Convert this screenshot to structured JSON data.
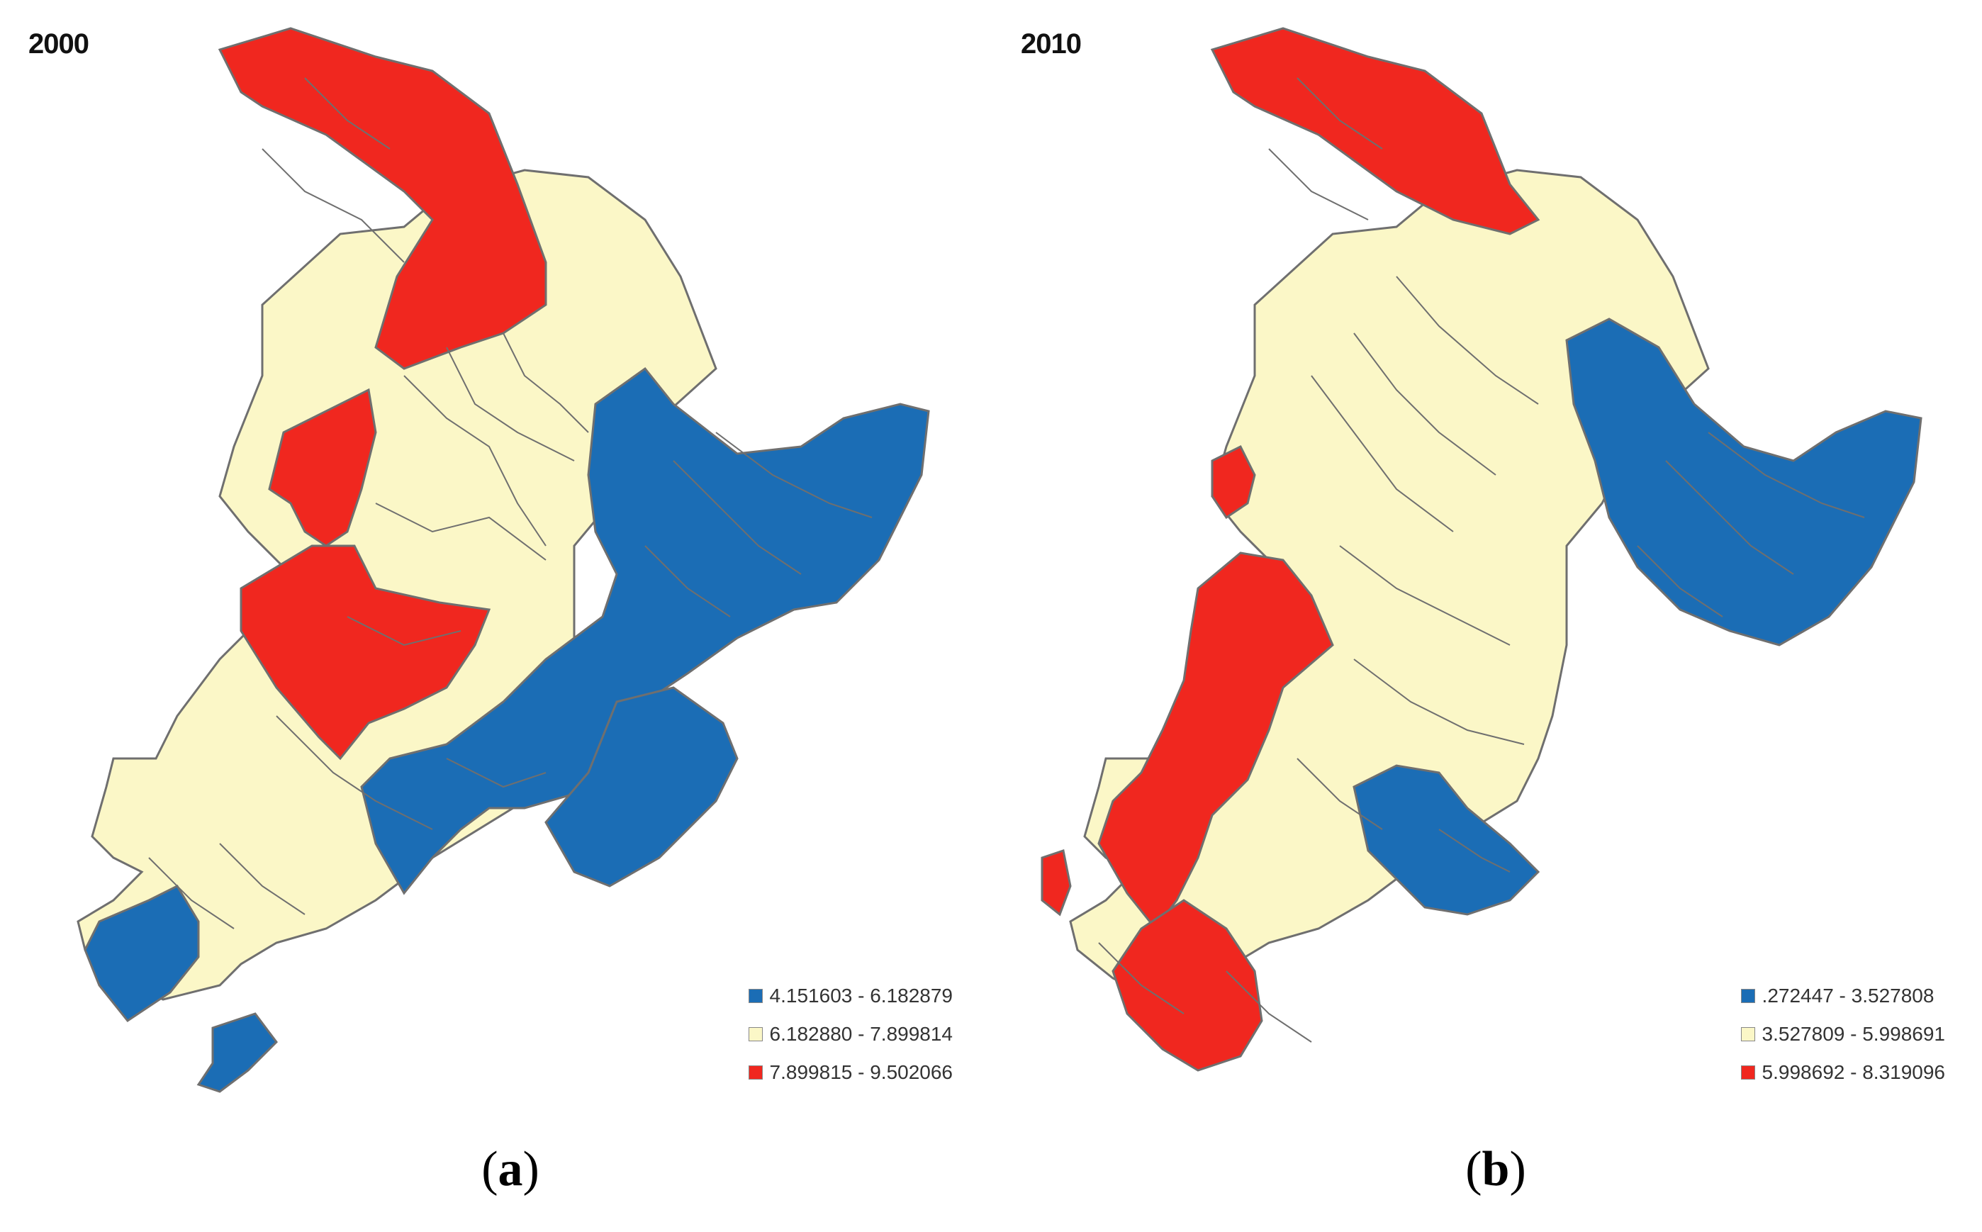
{
  "colors": {
    "blue": "#1b6db5",
    "cream": "#fbf7c7",
    "red": "#f0271f",
    "border": "#6f6f6f"
  },
  "panel_a": {
    "year": "2000",
    "caption": "a",
    "legend": [
      {
        "color": "blue",
        "label": "4.151603 - 6.182879"
      },
      {
        "color": "cream",
        "label": "6.182880 - 7.899814"
      },
      {
        "color": "red",
        "label": "7.899815 - 9.502066"
      }
    ]
  },
  "panel_b": {
    "year": "2010",
    "caption": "b",
    "legend": [
      {
        "color": "blue",
        "label": ".272447 - 3.527808"
      },
      {
        "color": "cream",
        "label": "3.527809 - 5.998691"
      },
      {
        "color": "red",
        "label": "5.998692 - 8.319096"
      }
    ]
  }
}
